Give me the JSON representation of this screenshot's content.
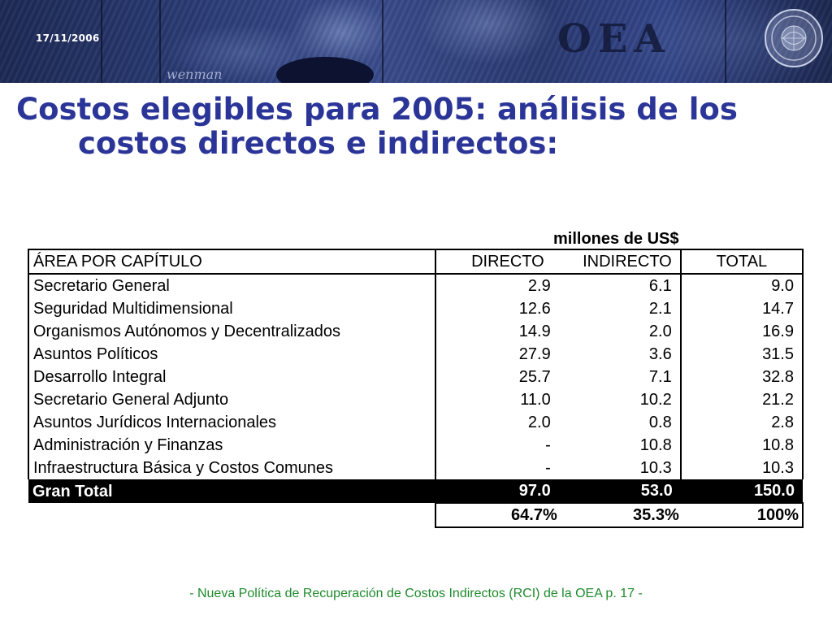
{
  "header": {
    "date": "17/11/2006",
    "logo_text": "OEA",
    "banner_scribble": "wenman"
  },
  "title": {
    "line1": "Costos elegibles para 2005: análisis de los",
    "line2": "costos directos e indirectos:"
  },
  "table": {
    "units_label": "millones de US$",
    "columns": [
      "ÁREA POR CAPÍTULO",
      "DIRECTO",
      "INDIRECTO",
      "TOTAL"
    ],
    "rows": [
      {
        "area": "Secretario General",
        "directo": "2.9",
        "indirecto": "6.1",
        "total": "9.0"
      },
      {
        "area": "Seguridad Multidimensional",
        "directo": "12.6",
        "indirecto": "2.1",
        "total": "14.7"
      },
      {
        "area": "Organismos Autónomos y Decentralizados",
        "directo": "14.9",
        "indirecto": "2.0",
        "total": "16.9"
      },
      {
        "area": "Asuntos Políticos",
        "directo": "27.9",
        "indirecto": "3.6",
        "total": "31.5"
      },
      {
        "area": "Desarrollo Integral",
        "directo": "25.7",
        "indirecto": "7.1",
        "total": "32.8"
      },
      {
        "area": "Secretario General Adjunto",
        "directo": "11.0",
        "indirecto": "10.2",
        "total": "21.2"
      },
      {
        "area": "Asuntos Jurídicos Internacionales",
        "directo": "2.0",
        "indirecto": "0.8",
        "total": "2.8"
      },
      {
        "area": "Administración y Finanzas",
        "directo": "-",
        "indirecto": "10.8",
        "total": "10.8"
      },
      {
        "area": "Infraestructura Básica y Costos Comunes",
        "directo": "-",
        "indirecto": "10.3",
        "total": "10.3"
      }
    ],
    "total_row": {
      "area": "Gran Total",
      "directo": "97.0",
      "indirecto": "53.0",
      "total": "150.0"
    },
    "percent_row": {
      "directo": "64.7%",
      "indirecto": "35.3%",
      "total": "100%"
    }
  },
  "footer": {
    "text": "-  Nueva Política de Recuperación de Costos Indirectos (RCI) de la OEA p. 17 -"
  },
  "colors": {
    "title": "#2b3598",
    "footer": "#1e8a2c",
    "banner": "#2c3d78"
  }
}
